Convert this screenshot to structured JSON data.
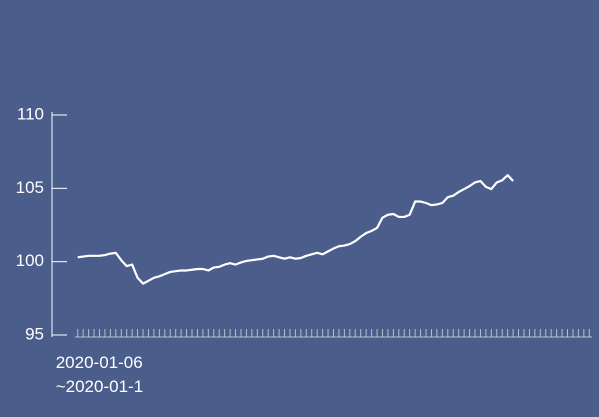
{
  "chart_data": {
    "type": "line",
    "categories": [
      "2020-01-06\n~2020-01-1",
      null,
      null,
      null,
      null,
      null,
      null,
      null,
      null,
      null,
      null,
      null,
      null,
      null,
      null,
      null,
      null,
      null,
      null,
      null,
      null,
      null,
      null,
      null,
      null,
      null,
      null,
      null,
      null,
      null,
      null,
      null,
      null,
      null,
      null,
      null,
      null,
      null,
      null,
      null,
      null,
      null,
      null,
      null,
      null,
      null,
      null,
      null,
      null,
      null,
      null,
      null,
      null,
      null,
      null,
      null,
      null,
      null,
      null,
      null,
      null,
      null,
      null,
      null,
      null,
      null,
      null,
      null,
      null,
      null,
      null,
      null,
      null,
      null,
      null,
      null,
      null,
      null,
      null,
      null,
      null,
      null,
      null,
      null,
      null,
      null,
      null,
      null,
      null,
      null,
      null,
      null,
      null,
      null,
      null
    ],
    "values": [
      100.3,
      100.35,
      100.4,
      100.4,
      100.4,
      100.45,
      100.55,
      100.6,
      100.1,
      99.7,
      99.8,
      98.9,
      98.5,
      98.7,
      98.9,
      99.0,
      99.15,
      99.3,
      99.35,
      99.4,
      99.4,
      99.45,
      99.5,
      99.5,
      99.4,
      99.6,
      99.65,
      99.8,
      99.9,
      99.8,
      99.95,
      100.05,
      100.1,
      100.15,
      100.2,
      100.35,
      100.4,
      100.3,
      100.2,
      100.3,
      100.2,
      100.25,
      100.4,
      100.5,
      100.6,
      100.5,
      100.7,
      100.9,
      101.05,
      101.1,
      101.2,
      101.4,
      101.7,
      101.95,
      102.1,
      102.3,
      103.0,
      103.2,
      103.25,
      103.05,
      103.05,
      103.2,
      104.1,
      104.1,
      104.0,
      103.85,
      103.9,
      104.0,
      104.4,
      104.5,
      104.75,
      104.95,
      105.15,
      105.4,
      105.5,
      105.1,
      104.95,
      105.4,
      105.55,
      105.9,
      105.5,
      null,
      null,
      null,
      null,
      null,
      null,
      null,
      null,
      null,
      null,
      null,
      null,
      null,
      null
    ],
    "color": "#ffffff",
    "ylim": [
      95,
      110
    ],
    "yticks": [
      95,
      100,
      105,
      110
    ]
  }
}
